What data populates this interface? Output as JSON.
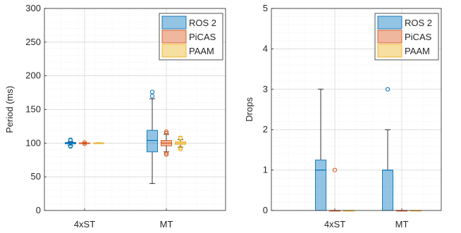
{
  "chart_data": [
    {
      "type": "box",
      "ylabel": "Period (ms)",
      "ylim": [
        0,
        300
      ],
      "yticks": [
        0,
        50,
        100,
        150,
        200,
        250,
        300
      ],
      "categories": [
        "4xST",
        "MT"
      ],
      "grid": "major and minor",
      "legend_position": "top-right",
      "series": [
        {
          "name": "ROS 2",
          "color": "#0072BD",
          "boxes": [
            {
              "min": 97,
              "q1": 99,
              "median": 100,
              "q3": 101,
              "max": 102,
              "outliers": [
                95,
                96,
                104,
                105
              ]
            },
            {
              "min": 40,
              "q1": 87,
              "median": 104,
              "q3": 119,
              "max": 166,
              "outliers": [
                170,
                176
              ]
            }
          ]
        },
        {
          "name": "PiCAS",
          "color": "#D95319",
          "boxes": [
            {
              "min": 99.5,
              "q1": 99.8,
              "median": 100,
              "q3": 100.2,
              "max": 100.5,
              "outliers": [
                99,
                101
              ]
            },
            {
              "min": 87,
              "q1": 96,
              "median": 100,
              "q3": 104,
              "max": 113,
              "outliers": [
                83,
                85,
                115,
                117
              ]
            }
          ]
        },
        {
          "name": "PAAM",
          "color": "#EDB120",
          "boxes": [
            {
              "min": 99.5,
              "q1": 99.8,
              "median": 100,
              "q3": 100.2,
              "max": 100.5,
              "outliers": []
            },
            {
              "min": 94,
              "q1": 98,
              "median": 100,
              "q3": 102,
              "max": 105,
              "outliers": [
                91,
                93,
                107,
                108
              ]
            }
          ]
        }
      ]
    },
    {
      "type": "box",
      "ylabel": "Drops",
      "ylim": [
        0,
        5
      ],
      "yticks": [
        0,
        1,
        2,
        3,
        4,
        5
      ],
      "categories": [
        "4xST",
        "MT"
      ],
      "grid": "major and minor",
      "legend_position": "top-right",
      "series": [
        {
          "name": "ROS 2",
          "color": "#0072BD",
          "boxes": [
            {
              "min": 0,
              "q1": 0,
              "median": 1,
              "q3": 1.25,
              "max": 3,
              "outliers": []
            },
            {
              "min": 0,
              "q1": 0,
              "median": 1,
              "q3": 1,
              "max": 2,
              "outliers": [
                3
              ]
            }
          ]
        },
        {
          "name": "PiCAS",
          "color": "#D95319",
          "boxes": [
            {
              "min": 0,
              "q1": 0,
              "median": 0,
              "q3": 0,
              "max": 0,
              "outliers": [
                1
              ]
            },
            {
              "min": 0,
              "q1": 0,
              "median": 0,
              "q3": 0,
              "max": 0,
              "outliers": []
            }
          ]
        },
        {
          "name": "PAAM",
          "color": "#EDB120",
          "boxes": [
            {
              "min": 0,
              "q1": 0,
              "median": 0,
              "q3": 0,
              "max": 0,
              "outliers": []
            },
            {
              "min": 0,
              "q1": 0,
              "median": 0,
              "q3": 0,
              "max": 0,
              "outliers": []
            }
          ]
        }
      ]
    }
  ]
}
